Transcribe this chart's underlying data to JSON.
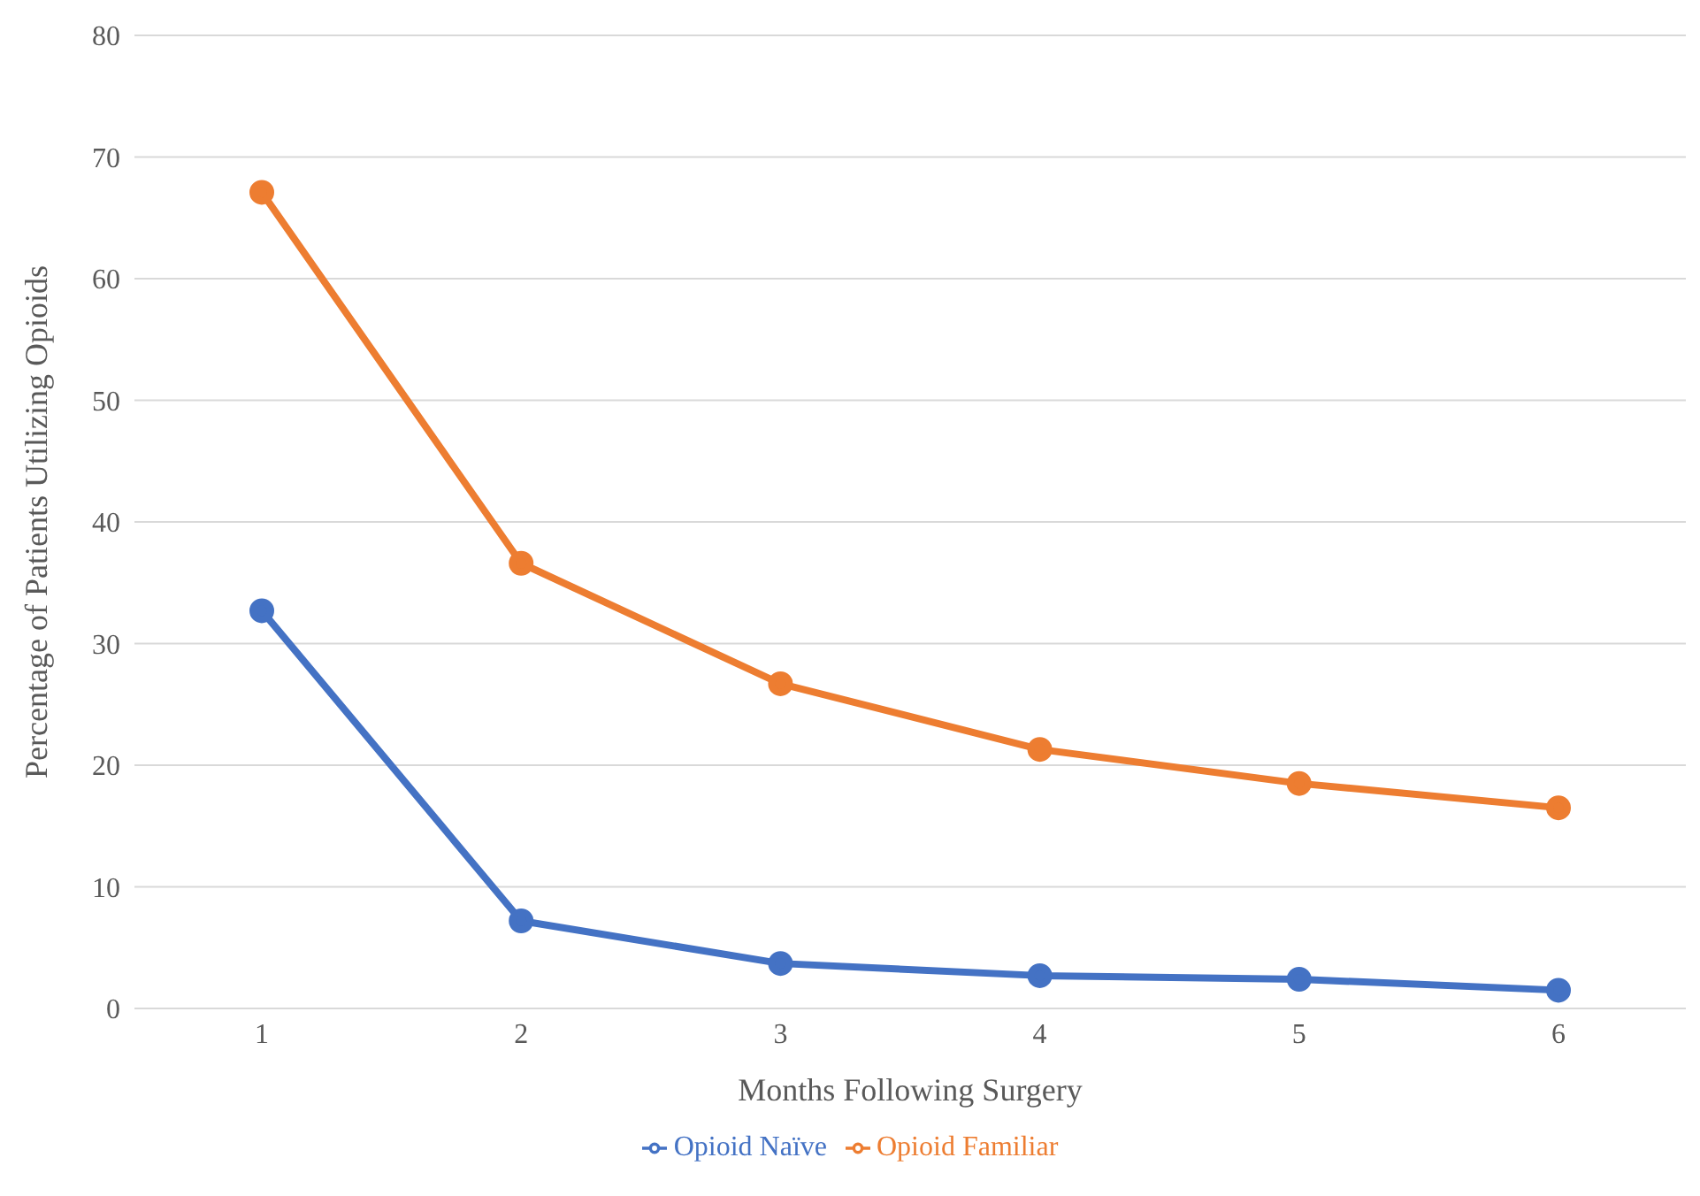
{
  "chart_data": {
    "type": "line",
    "xlabel": "Months Following Surgery",
    "ylabel": "Percentage of Patients Utilizing Opioids",
    "categories": [
      "1",
      "2",
      "3",
      "4",
      "5",
      "6"
    ],
    "series": [
      {
        "name": "Opioid Naïve",
        "color": "#4472c4",
        "values": [
          32.7,
          7.2,
          3.7,
          2.7,
          2.4,
          1.5
        ]
      },
      {
        "name": "Opioid Familiar",
        "color": "#ed7d31",
        "values": [
          67.1,
          36.6,
          26.7,
          21.3,
          18.5,
          16.5
        ]
      }
    ],
    "ylim": [
      0,
      80
    ],
    "yticks": [
      0,
      10,
      20,
      30,
      40,
      50,
      60,
      70,
      80
    ],
    "grid": "y",
    "legend": "bottom",
    "marker": "circle",
    "line_style": "solid"
  }
}
